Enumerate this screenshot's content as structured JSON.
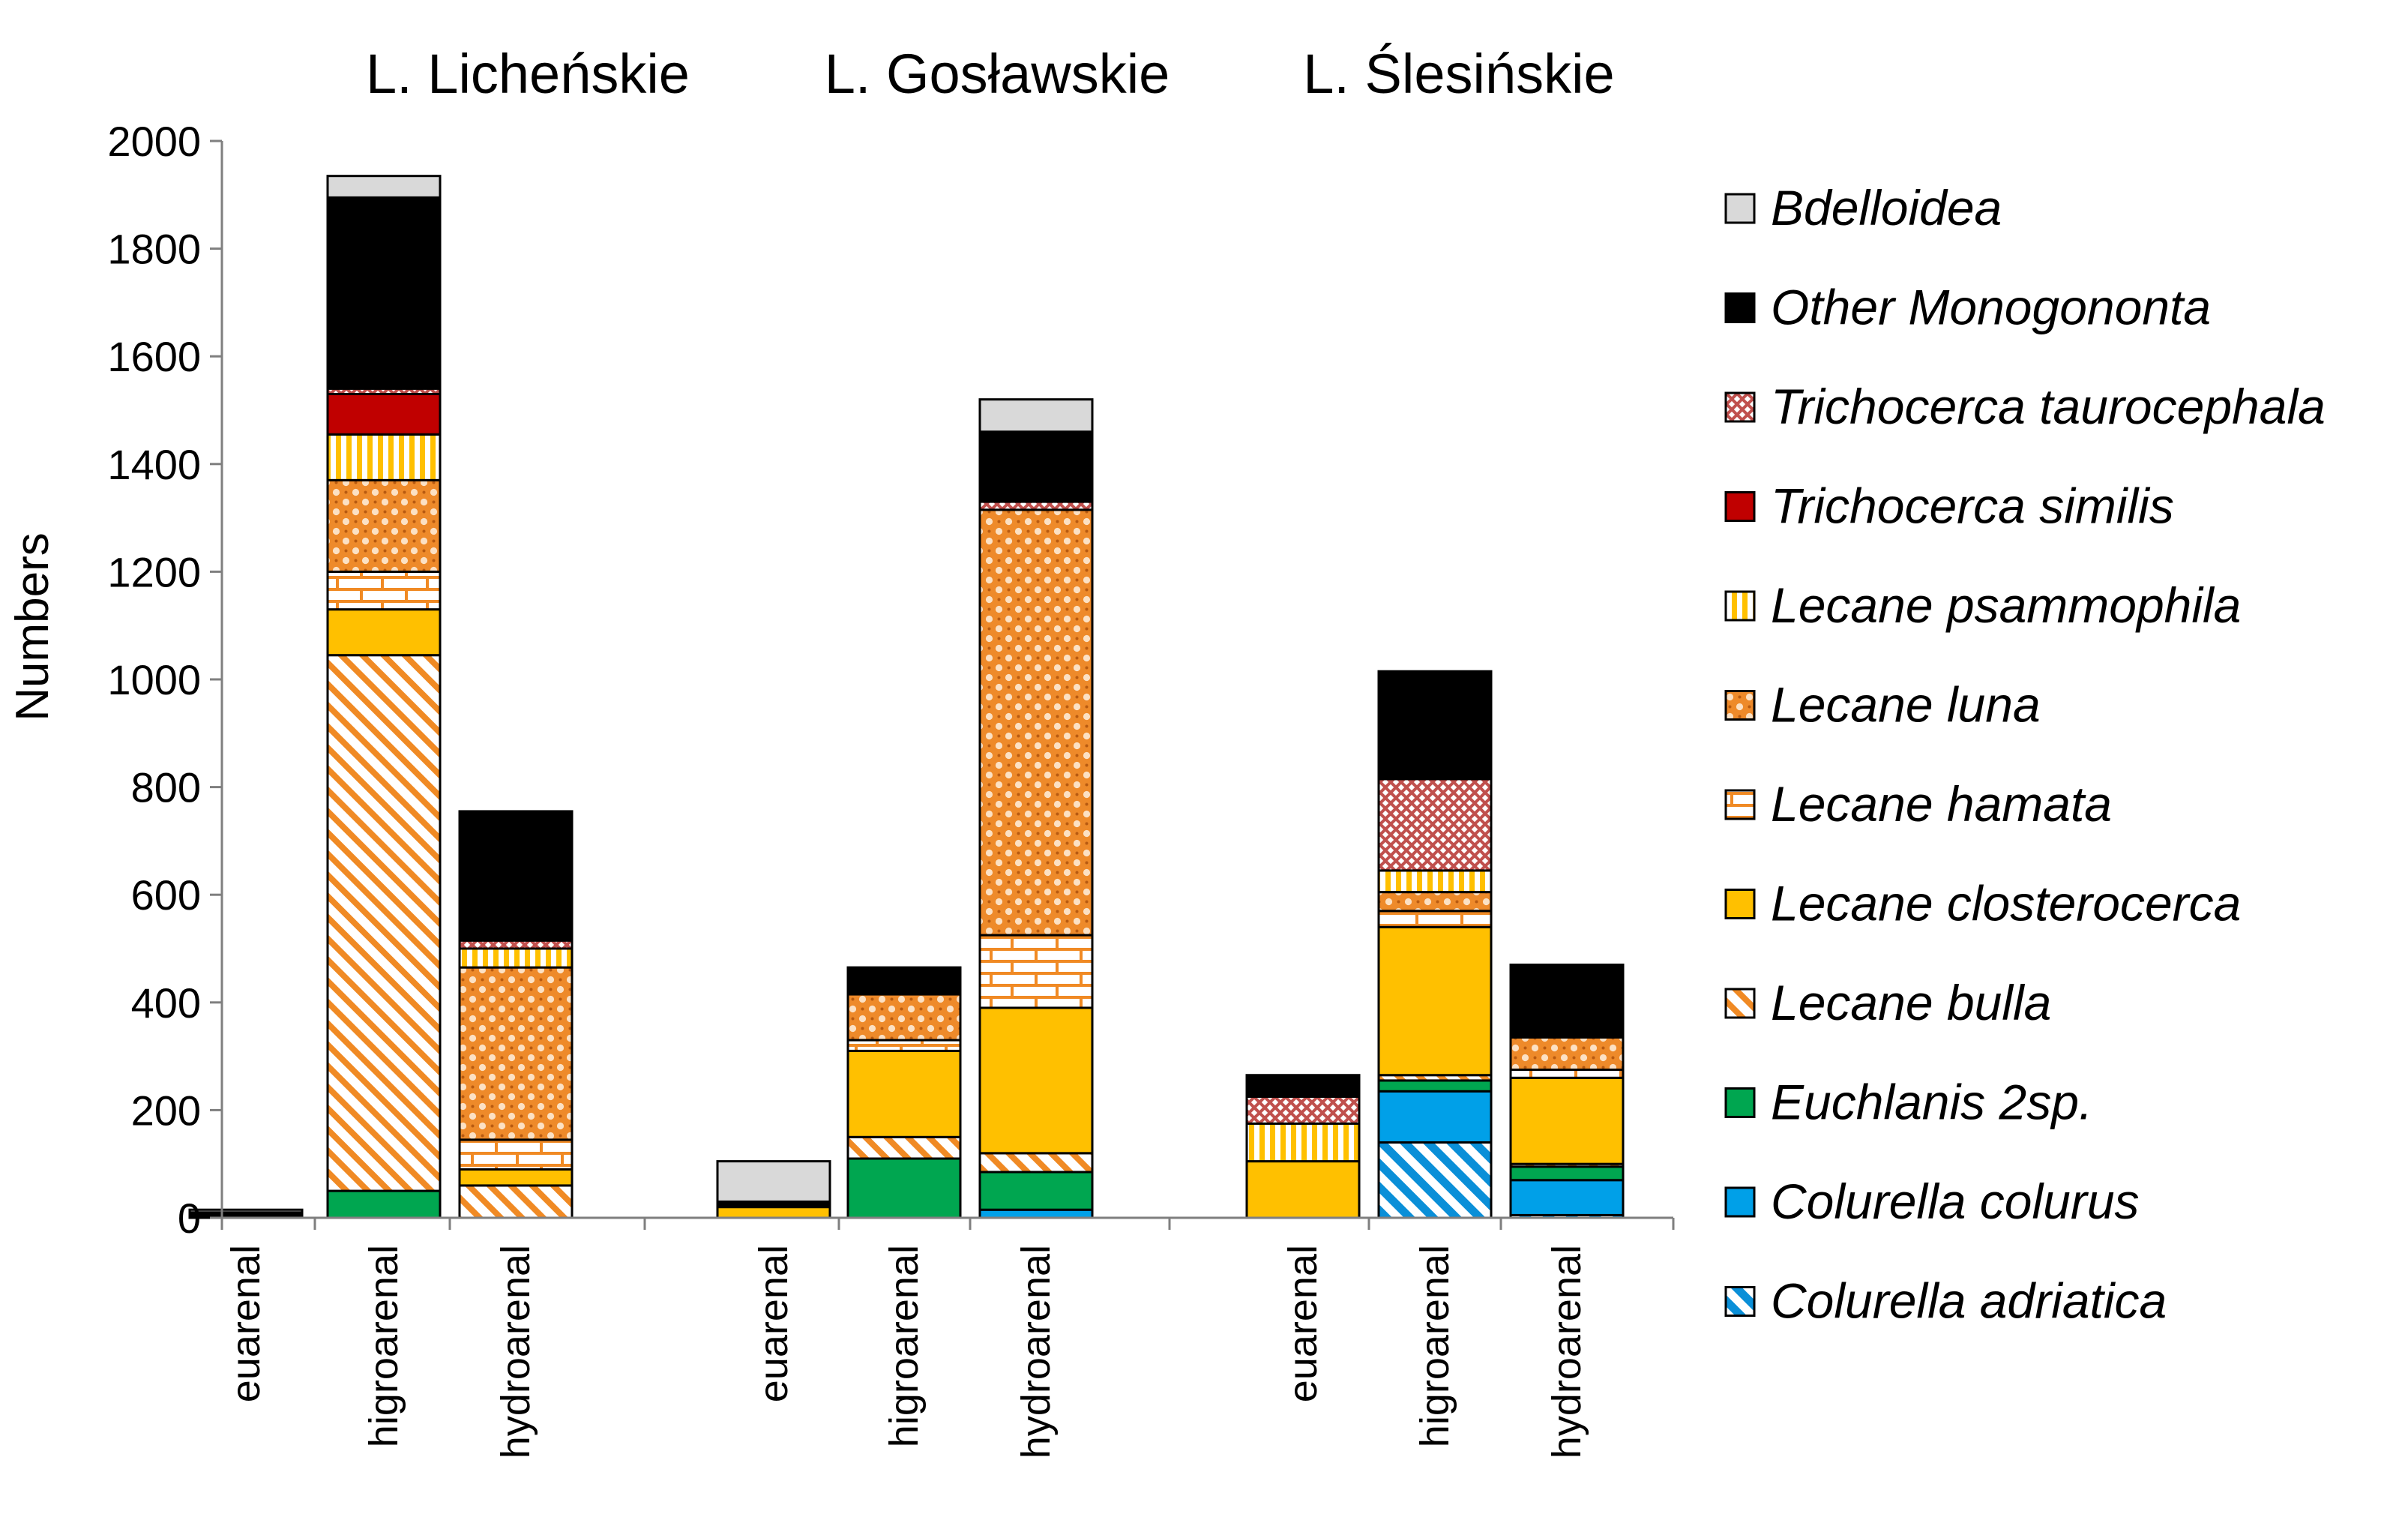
{
  "chart_data": {
    "type": "bar",
    "stacked": true,
    "title": "",
    "xlabel": "",
    "ylabel": "Numbers",
    "ylim": [
      0,
      2000
    ],
    "yticks": [
      0,
      200,
      400,
      600,
      800,
      1000,
      1200,
      1400,
      1600,
      1800,
      2000
    ],
    "grid": false,
    "legend_position": "right",
    "groups": [
      {
        "name": "L. Licheńskie",
        "categories": [
          "euarenal",
          "higroarenal",
          "hydroarenal"
        ]
      },
      {
        "name": "L. Gosławskie",
        "categories": [
          "euarenal",
          "higroarenal",
          "hydroarenal"
        ]
      },
      {
        "name": "L. Ślesińskie",
        "categories": [
          "euarenal",
          "higroarenal",
          "hydroarenal"
        ]
      }
    ],
    "series": [
      {
        "name": "Colurella adriatica",
        "color": "#00a0e8",
        "pattern": "diag-blue",
        "values": [
          0,
          0,
          0,
          0,
          0,
          0,
          0,
          140,
          5
        ]
      },
      {
        "name": "Colurella colurus",
        "color": "#00a0e8",
        "pattern": "solid",
        "values": [
          0,
          0,
          0,
          0,
          0,
          15,
          0,
          95,
          65
        ]
      },
      {
        "name": "Euchlanis 2sp.",
        "color": "#00a650",
        "pattern": "solid",
        "values": [
          0,
          50,
          0,
          0,
          110,
          70,
          0,
          20,
          25
        ]
      },
      {
        "name": "Lecane bulla",
        "color": "#f08a24",
        "pattern": "diag-orange",
        "values": [
          0,
          995,
          60,
          0,
          40,
          35,
          0,
          10,
          5
        ]
      },
      {
        "name": "Lecane closterocerca",
        "color": "#ffc000",
        "pattern": "solid",
        "values": [
          0,
          85,
          30,
          20,
          160,
          270,
          105,
          275,
          160
        ]
      },
      {
        "name": "Lecane hamata",
        "color": "#f08a24",
        "pattern": "brick",
        "values": [
          0,
          70,
          55,
          0,
          20,
          135,
          0,
          30,
          15
        ]
      },
      {
        "name": "Lecane luna",
        "color": "#f08a24",
        "pattern": "dots",
        "values": [
          0,
          170,
          320,
          0,
          85,
          790,
          0,
          35,
          60
        ]
      },
      {
        "name": "Lecane psammophila",
        "color": "#ffc000",
        "pattern": "vlines",
        "values": [
          0,
          85,
          35,
          0,
          0,
          0,
          70,
          40,
          0
        ]
      },
      {
        "name": "Trichocerca similis",
        "color": "#c00000",
        "pattern": "solid",
        "values": [
          0,
          75,
          0,
          0,
          0,
          0,
          0,
          0,
          0
        ]
      },
      {
        "name": "Trichocerca taurocephala",
        "color": "#c0504d",
        "pattern": "cross",
        "values": [
          0,
          10,
          15,
          0,
          0,
          15,
          50,
          170,
          0
        ]
      },
      {
        "name": "Other Monogononta",
        "color": "#000000",
        "pattern": "solid",
        "values": [
          10,
          355,
          240,
          10,
          50,
          130,
          40,
          200,
          135
        ]
      },
      {
        "name": "Bdelloidea",
        "color": "#d9d9d9",
        "pattern": "solid",
        "values": [
          5,
          40,
          0,
          75,
          0,
          60,
          0,
          0,
          0
        ]
      }
    ]
  }
}
